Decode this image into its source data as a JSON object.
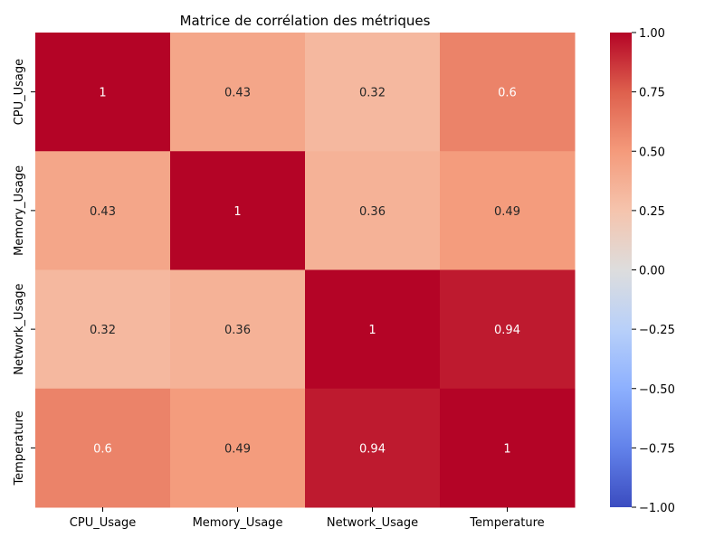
{
  "chart_data": {
    "type": "heatmap",
    "title": "Matrice de corrélation des métriques",
    "xlabel": "",
    "ylabel": "",
    "x_categories": [
      "CPU_Usage",
      "Memory_Usage",
      "Network_Usage",
      "Temperature"
    ],
    "y_categories": [
      "CPU_Usage",
      "Memory_Usage",
      "Network_Usage",
      "Temperature"
    ],
    "values": [
      [
        1,
        0.43,
        0.32,
        0.6
      ],
      [
        0.43,
        1,
        0.36,
        0.49
      ],
      [
        0.32,
        0.36,
        1,
        0.94
      ],
      [
        0.6,
        0.49,
        0.94,
        1
      ]
    ],
    "annotations": [
      [
        "1",
        "0.43",
        "0.32",
        "0.6"
      ],
      [
        "0.43",
        "1",
        "0.36",
        "0.49"
      ],
      [
        "0.32",
        "0.36",
        "1",
        "0.94"
      ],
      [
        "0.6",
        "0.49",
        "0.94",
        "1"
      ]
    ],
    "colormap": "coolwarm",
    "vmin": -1,
    "vmax": 1,
    "colorbar_ticks": [
      "1.00",
      "0.75",
      "0.50",
      "0.25",
      "0.00",
      "−0.25",
      "−0.50",
      "−0.75",
      "−1.00"
    ],
    "colorbar_tick_values": [
      1,
      0.75,
      0.5,
      0.25,
      0,
      -0.25,
      -0.5,
      -0.75,
      -1
    ],
    "grid": false,
    "legend": "colorbar-right"
  }
}
